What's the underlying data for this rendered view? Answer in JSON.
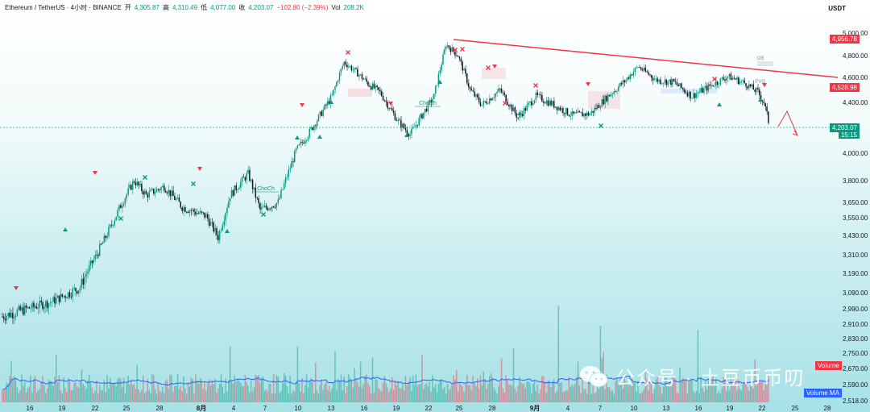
{
  "header": {
    "symbol": "Ethereum / TetherUS · 4小时 · BINANCE",
    "open_label": "开",
    "open": "4,305.87",
    "high_label": "高",
    "high": "4,310.49",
    "low_label": "低",
    "low": "4,077.00",
    "close_label": "收",
    "close": "4,203.07",
    "change": "−102.80 (−2.39%)",
    "vol_label": "Vol",
    "vol": "208.2K"
  },
  "price_axis": {
    "unit": "USDT",
    "tag_top": "4,956.78",
    "tag_mid": "4,528.98",
    "tag_current": "4,203.07",
    "countdown": "15:15"
  },
  "volume_labels": {
    "volume": "Volume",
    "volume_ma": "Volume MA"
  },
  "watermark": "公众号 · 土豆币币叨",
  "colors": {
    "up": "#089981",
    "down": "#131722",
    "trendline": "#f23645",
    "ma": "#2962ff"
  },
  "chart_data": {
    "type": "candlestick",
    "y_ticks": [
      "5,000.00",
      "4,800.00",
      "4,600.00",
      "4,400.00",
      "4,000.00",
      "3,800.00",
      "3,650.00",
      "3,550.00",
      "3,430.00",
      "3,310.00",
      "3,190.00",
      "3,090.00",
      "2,990.00",
      "2,910.00",
      "2,830.00",
      "2,750.00",
      "2,670.00",
      "2,590.00",
      "2,518.00"
    ],
    "x_ticks": [
      "16",
      "19",
      "22",
      "25",
      "28",
      "8月",
      "4",
      "7",
      "10",
      "13",
      "16",
      "19",
      "22",
      "25",
      "28",
      "9月",
      "4",
      "7",
      "10",
      "13",
      "16",
      "19",
      "22",
      "25",
      "28"
    ],
    "price_path": [
      [
        0,
        2950
      ],
      [
        8,
        3030
      ],
      [
        13,
        3120
      ],
      [
        17,
        3400
      ],
      [
        20,
        3650
      ],
      [
        22,
        3800
      ],
      [
        24,
        3700
      ],
      [
        27,
        3760
      ],
      [
        30,
        3620
      ],
      [
        34,
        3560
      ],
      [
        36,
        3420
      ],
      [
        38,
        3700
      ],
      [
        41,
        3850
      ],
      [
        43,
        3600
      ],
      [
        46,
        3650
      ],
      [
        49,
        4020
      ],
      [
        51,
        4150
      ],
      [
        53,
        4300
      ],
      [
        55,
        4450
      ],
      [
        57,
        4740
      ],
      [
        59,
        4650
      ],
      [
        61,
        4550
      ],
      [
        63,
        4480
      ],
      [
        66,
        4250
      ],
      [
        68,
        4150
      ],
      [
        70,
        4300
      ],
      [
        72,
        4450
      ],
      [
        74,
        4900
      ],
      [
        76,
        4800
      ],
      [
        78,
        4500
      ],
      [
        80,
        4380
      ],
      [
        83,
        4500
      ],
      [
        86,
        4280
      ],
      [
        89,
        4450
      ],
      [
        92,
        4380
      ],
      [
        95,
        4300
      ],
      [
        98,
        4310
      ],
      [
        101,
        4450
      ],
      [
        104,
        4580
      ],
      [
        106,
        4700
      ],
      [
        109,
        4580
      ],
      [
        112,
        4560
      ],
      [
        115,
        4450
      ],
      [
        118,
        4530
      ],
      [
        121,
        4610
      ],
      [
        124,
        4550
      ],
      [
        126,
        4480
      ],
      [
        127,
        4400
      ],
      [
        128,
        4203
      ]
    ],
    "annotations": [
      "ChoCh",
      "ChoCh",
      "FVG",
      "OB"
    ],
    "trendline": {
      "start": [
        76,
        4950
      ],
      "end": [
        140,
        4600
      ]
    }
  }
}
